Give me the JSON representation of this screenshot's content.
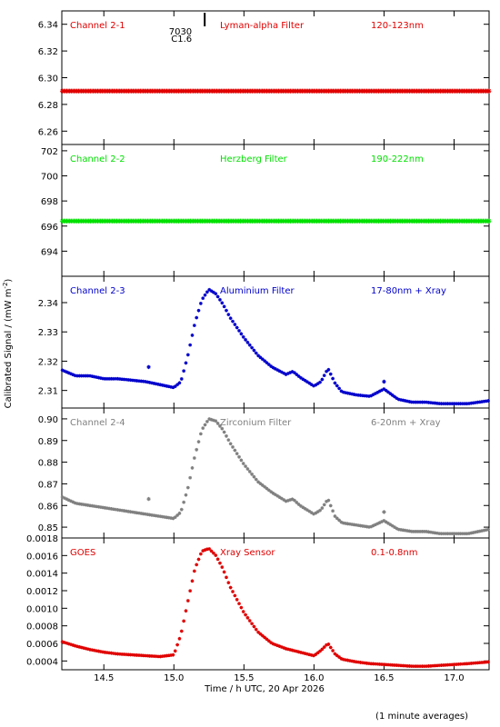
{
  "chart_data": {
    "type": "scatter",
    "ylabel": "Calibrated Signal / (mW m",
    "ylabel_sup": "-2",
    "ylabel_close": ")",
    "xlabel": "Time / h UTC, 20 Apr 2026",
    "footnote": "(1 minute averages)",
    "x_range": [
      14.2,
      17.25
    ],
    "x_ticks": [
      14.5,
      15.0,
      15.5,
      16.0,
      16.5,
      17.0
    ],
    "x_tick_labels": [
      "14.5",
      "15.0",
      "15.5",
      "16.0",
      "16.5",
      "17.0"
    ],
    "flare_marker": {
      "x": 15.22,
      "labels": [
        "7030",
        "C1.6"
      ]
    },
    "panels": [
      {
        "channel": "Channel 2-1",
        "filter": "Lyman-alpha Filter",
        "band": "120-123nm",
        "color": "#e00000",
        "ylim": [
          6.25,
          6.35
        ],
        "yticks": [
          6.26,
          6.28,
          6.3,
          6.32,
          6.34
        ],
        "ytick_labels": [
          "6.26",
          "6.28",
          "6.30",
          "6.32",
          "6.34"
        ],
        "series": {
          "name": "Channel 2-1",
          "x": [
            14.2,
            15.0,
            16.0,
            17.25
          ],
          "y": [
            6.29,
            6.29,
            6.29,
            6.29
          ]
        }
      },
      {
        "channel": "Channel 2-2",
        "filter": "Herzberg Filter",
        "band": "190-222nm",
        "color": "#00e000",
        "ylim": [
          692,
          702.5
        ],
        "yticks": [
          694,
          696,
          698,
          700,
          702
        ],
        "ytick_labels": [
          "694",
          "696",
          "698",
          "700",
          "702"
        ],
        "series": {
          "name": "Channel 2-2",
          "x": [
            14.2,
            15.0,
            16.0,
            17.25
          ],
          "y": [
            696.4,
            696.4,
            696.4,
            696.4
          ]
        }
      },
      {
        "channel": "Channel 2-3",
        "filter": "Aluminium Filter",
        "band": "17-80nm + Xray",
        "color": "#0000cc",
        "ylim": [
          2.304,
          2.349
        ],
        "yticks": [
          2.31,
          2.32,
          2.33,
          2.34
        ],
        "ytick_labels": [
          "2.31",
          "2.32",
          "2.33",
          "2.34"
        ],
        "series": {
          "name": "Channel 2-3",
          "x": [
            14.2,
            14.3,
            14.4,
            14.5,
            14.6,
            14.7,
            14.8,
            14.9,
            15.0,
            15.05,
            15.1,
            15.15,
            15.2,
            15.25,
            15.3,
            15.35,
            15.4,
            15.5,
            15.6,
            15.7,
            15.8,
            15.85,
            15.9,
            16.0,
            16.05,
            16.1,
            16.15,
            16.2,
            16.3,
            16.4,
            16.5,
            16.6,
            16.7,
            16.8,
            16.9,
            17.0,
            17.1,
            17.25
          ],
          "y": [
            2.317,
            2.315,
            2.315,
            2.314,
            2.314,
            2.3135,
            2.313,
            2.312,
            2.311,
            2.313,
            2.322,
            2.333,
            2.341,
            2.3445,
            2.343,
            2.3395,
            2.335,
            2.328,
            2.322,
            2.318,
            2.3155,
            2.3165,
            2.3145,
            2.3115,
            2.313,
            2.3175,
            2.3125,
            2.3095,
            2.3085,
            2.308,
            2.3105,
            2.307,
            2.306,
            2.306,
            2.3055,
            2.3055,
            2.3055,
            2.3065
          ]
        },
        "outliers": {
          "x": [
            14.82,
            16.5
          ],
          "y": [
            2.318,
            2.313
          ]
        }
      },
      {
        "channel": "Channel 2-4",
        "filter": "Zirconium Filter",
        "band": "6-20nm + Xray",
        "color": "#808080",
        "ylim": [
          0.845,
          0.905
        ],
        "yticks": [
          0.85,
          0.86,
          0.87,
          0.88,
          0.89,
          0.9
        ],
        "ytick_labels": [
          "0.85",
          "0.86",
          "0.87",
          "0.88",
          "0.89",
          "0.90"
        ],
        "series": {
          "name": "Channel 2-4",
          "x": [
            14.2,
            14.3,
            14.4,
            14.5,
            14.6,
            14.7,
            14.8,
            14.9,
            15.0,
            15.05,
            15.1,
            15.15,
            15.2,
            15.25,
            15.3,
            15.35,
            15.4,
            15.5,
            15.6,
            15.7,
            15.8,
            15.85,
            15.9,
            16.0,
            16.05,
            16.1,
            16.15,
            16.2,
            16.3,
            16.4,
            16.5,
            16.6,
            16.7,
            16.8,
            16.9,
            17.0,
            17.1,
            17.25
          ],
          "y": [
            0.864,
            0.861,
            0.86,
            0.859,
            0.858,
            0.857,
            0.856,
            0.855,
            0.854,
            0.857,
            0.868,
            0.883,
            0.895,
            0.9,
            0.899,
            0.895,
            0.889,
            0.879,
            0.871,
            0.866,
            0.862,
            0.863,
            0.86,
            0.856,
            0.858,
            0.863,
            0.855,
            0.852,
            0.851,
            0.85,
            0.853,
            0.849,
            0.848,
            0.848,
            0.847,
            0.847,
            0.847,
            0.849
          ]
        },
        "outliers": {
          "x": [
            14.82,
            16.5
          ],
          "y": [
            0.863,
            0.857
          ]
        }
      },
      {
        "channel": "GOES",
        "filter": "Xray Sensor",
        "band": "0.1-0.8nm",
        "color": "#e00000",
        "ylim": [
          0.0003,
          0.0018
        ],
        "yticks": [
          0.0004,
          0.0006,
          0.0008,
          0.001,
          0.0012,
          0.0014,
          0.0016,
          0.0018
        ],
        "ytick_labels": [
          "0.0004",
          "0.0006",
          "0.0008",
          "0.0010",
          "0.0012",
          "0.0014",
          "0.0016",
          "0.0018"
        ],
        "series": {
          "name": "GOES",
          "x": [
            14.2,
            14.3,
            14.4,
            14.5,
            14.6,
            14.7,
            14.8,
            14.9,
            15.0,
            15.05,
            15.1,
            15.15,
            15.2,
            15.25,
            15.3,
            15.35,
            15.4,
            15.5,
            15.6,
            15.7,
            15.8,
            15.9,
            16.0,
            16.05,
            16.1,
            16.15,
            16.2,
            16.3,
            16.4,
            16.5,
            16.6,
            16.7,
            16.8,
            16.9,
            17.0,
            17.1,
            17.25
          ],
          "y": [
            0.00062,
            0.00057,
            0.00053,
            0.0005,
            0.00048,
            0.00047,
            0.00046,
            0.00045,
            0.00047,
            0.0007,
            0.00108,
            0.00145,
            0.00165,
            0.00168,
            0.0016,
            0.00145,
            0.00125,
            0.00095,
            0.00073,
            0.0006,
            0.00054,
            0.0005,
            0.00046,
            0.00052,
            0.0006,
            0.00048,
            0.00042,
            0.00039,
            0.00037,
            0.00036,
            0.00035,
            0.00034,
            0.00034,
            0.00035,
            0.00036,
            0.00037,
            0.00039
          ]
        }
      }
    ]
  }
}
